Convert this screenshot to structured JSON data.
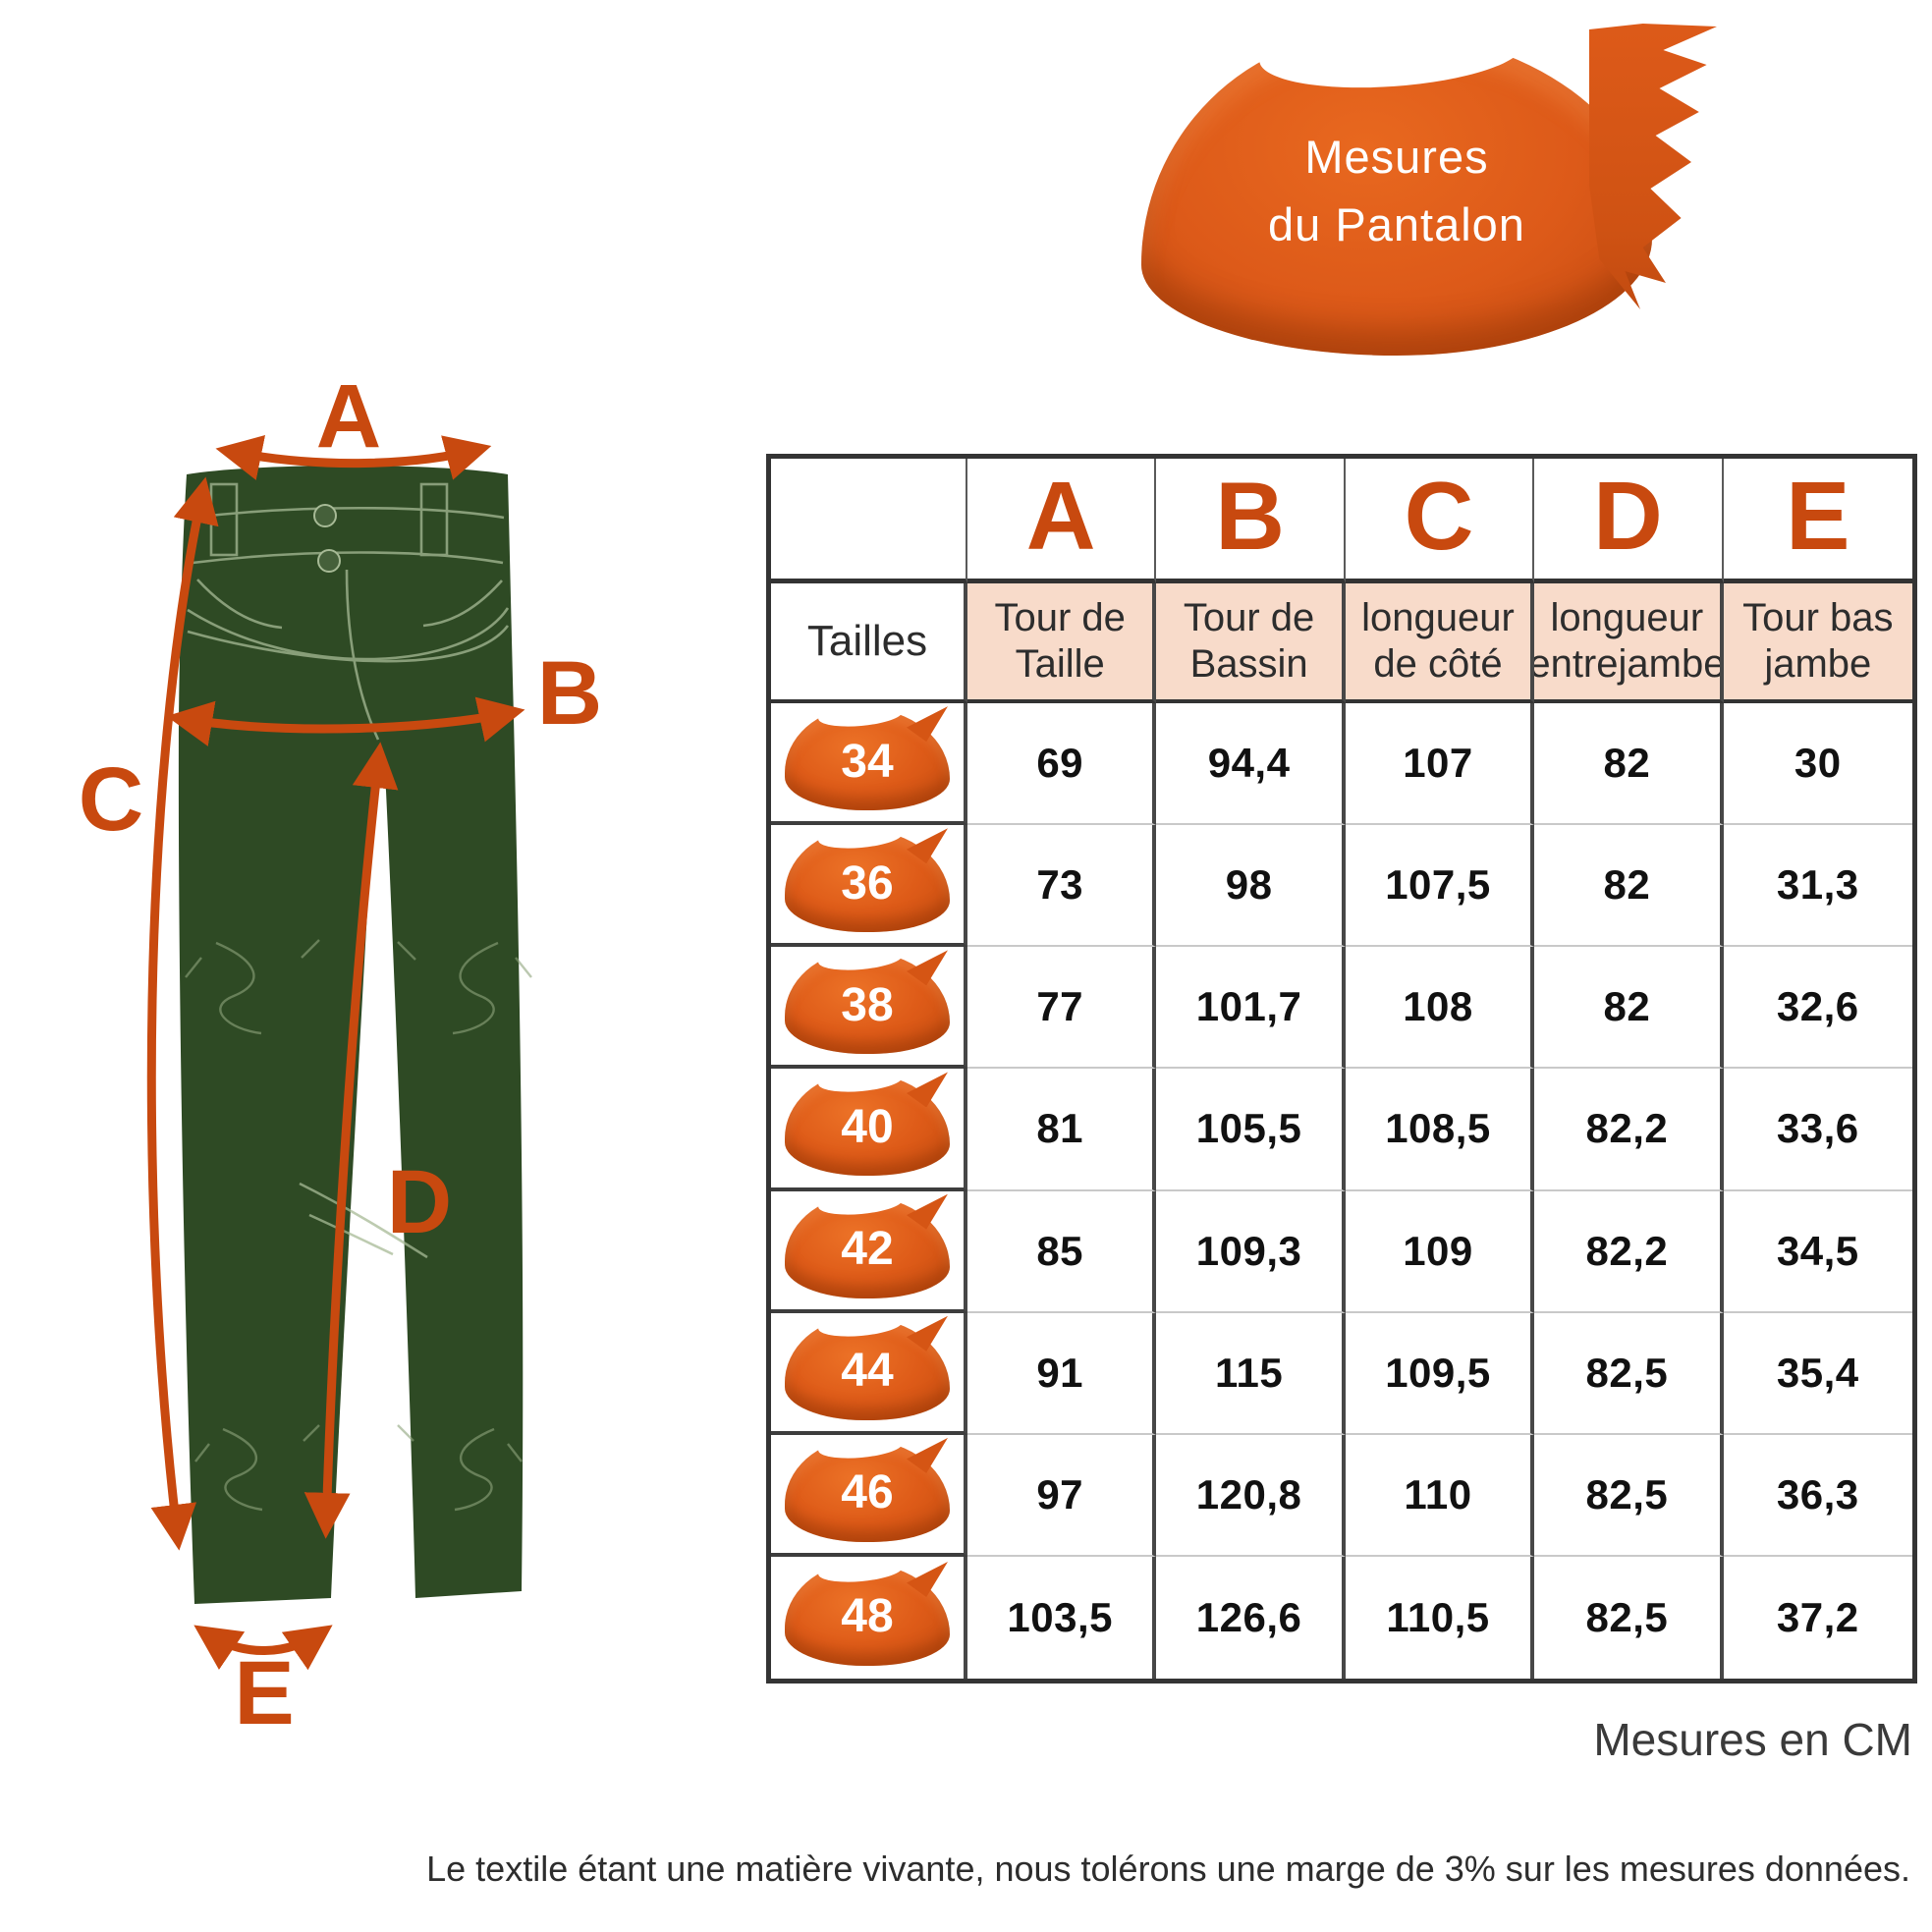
{
  "title": {
    "line1": "Mesures",
    "line2": "du Pantalon"
  },
  "diagram": {
    "labels": [
      "A",
      "B",
      "C",
      "D",
      "E"
    ]
  },
  "table": {
    "size_col_header": "Tailles",
    "letter_headers": [
      "A",
      "B",
      "C",
      "D",
      "E"
    ],
    "measure_headers": [
      "Tour de Taille",
      "Tour de Bassin",
      "longueur de côté",
      "longueur entrejambe",
      "Tour bas jambe"
    ],
    "rows": [
      {
        "size": "34",
        "values": [
          "69",
          "94,4",
          "107",
          "82",
          "30"
        ]
      },
      {
        "size": "36",
        "values": [
          "73",
          "98",
          "107,5",
          "82",
          "31,3"
        ]
      },
      {
        "size": "38",
        "values": [
          "77",
          "101,7",
          "108",
          "82",
          "32,6"
        ]
      },
      {
        "size": "40",
        "values": [
          "81",
          "105,5",
          "108,5",
          "82,2",
          "33,6"
        ]
      },
      {
        "size": "42",
        "values": [
          "85",
          "109,3",
          "109",
          "82,2",
          "34,5"
        ]
      },
      {
        "size": "44",
        "values": [
          "91",
          "115",
          "109,5",
          "82,5",
          "35,4"
        ]
      },
      {
        "size": "46",
        "values": [
          "97",
          "120,8",
          "110",
          "82,5",
          "36,3"
        ]
      },
      {
        "size": "48",
        "values": [
          "103,5",
          "126,6",
          "110,5",
          "82,5",
          "37,2"
        ]
      }
    ]
  },
  "footer": {
    "units_note": "Mesures en CM",
    "disclaimer": "Le textile étant une matière vivante, nous tolérons une marge de 3% sur les mesures données."
  },
  "colors": {
    "accent_orange": "#c8490f",
    "daub_orange": "#de5b18",
    "header_peach": "#f8dbca",
    "pants_green": "#2e4a24",
    "stitch_green": "#a7ba96"
  },
  "chart_data": {
    "type": "table",
    "title": "Mesures du Pantalon",
    "units": "CM",
    "columns": [
      "Tailles",
      "A - Tour de Taille",
      "B - Tour de Bassin",
      "C - longueur de côté",
      "D - longueur entrejambe",
      "E - Tour bas jambe"
    ],
    "rows": [
      [
        "34",
        69,
        94.4,
        107,
        82,
        30
      ],
      [
        "36",
        73,
        98,
        107.5,
        82,
        31.3
      ],
      [
        "38",
        77,
        101.7,
        108,
        82,
        32.6
      ],
      [
        "40",
        81,
        105.5,
        108.5,
        82.2,
        33.6
      ],
      [
        "42",
        85,
        109.3,
        109,
        82.2,
        34.5
      ],
      [
        "44",
        91,
        115,
        109.5,
        82.5,
        35.4
      ],
      [
        "46",
        97,
        120.8,
        110,
        82.5,
        36.3
      ],
      [
        "48",
        103.5,
        126.6,
        110.5,
        82.5,
        37.2
      ]
    ],
    "footnote": "Le textile étant une matière vivante, nous tolérons une marge de 3% sur les mesures données."
  }
}
